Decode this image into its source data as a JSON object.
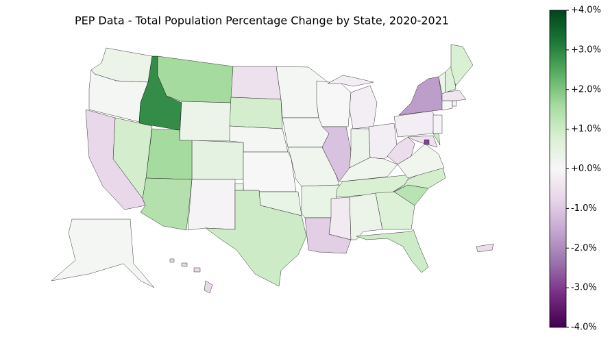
{
  "chart_data": {
    "type": "choropleth",
    "title": "PEP Data - Total Population Percentage Change by State, 2020-2021",
    "colormap": "PRGn",
    "clim": [
      -4,
      4
    ],
    "cticks": [
      {
        "value": 4,
        "label": "+4.0%"
      },
      {
        "value": 3,
        "label": "+3.0%"
      },
      {
        "value": 2,
        "label": "+2.0%"
      },
      {
        "value": 1,
        "label": "+1.0%"
      },
      {
        "value": 0,
        "label": "+0.0%"
      },
      {
        "value": -1,
        "label": "-1.0%"
      },
      {
        "value": -2,
        "label": "-2.0%"
      },
      {
        "value": -3,
        "label": "-3.0%"
      },
      {
        "value": -4,
        "label": "-4.0%"
      }
    ],
    "values": [
      0.3,
      0.1,
      2.9,
      1.6,
      0.3,
      -0.5,
      0.9,
      0.1,
      0.5,
      1.6,
      0.9,
      -0.7,
      1.4,
      -0.1,
      0.0,
      0.4,
      1.0,
      0.1,
      0.1,
      0.2,
      0.4,
      -0.9,
      0.0,
      -1.1,
      -0.2,
      0.3,
      -0.2,
      0.2,
      0.8,
      -0.3,
      0.3,
      0.7,
      1.0,
      1.3,
      0.9,
      0.2,
      -0.6,
      -0.2,
      -1.7,
      -0.1,
      -0.5,
      1.0,
      -2.9,
      0.0,
      -0.1,
      -0.4,
      0.3,
      0.7,
      0.8,
      0.1,
      -0.7,
      -0.6
    ]
  }
}
